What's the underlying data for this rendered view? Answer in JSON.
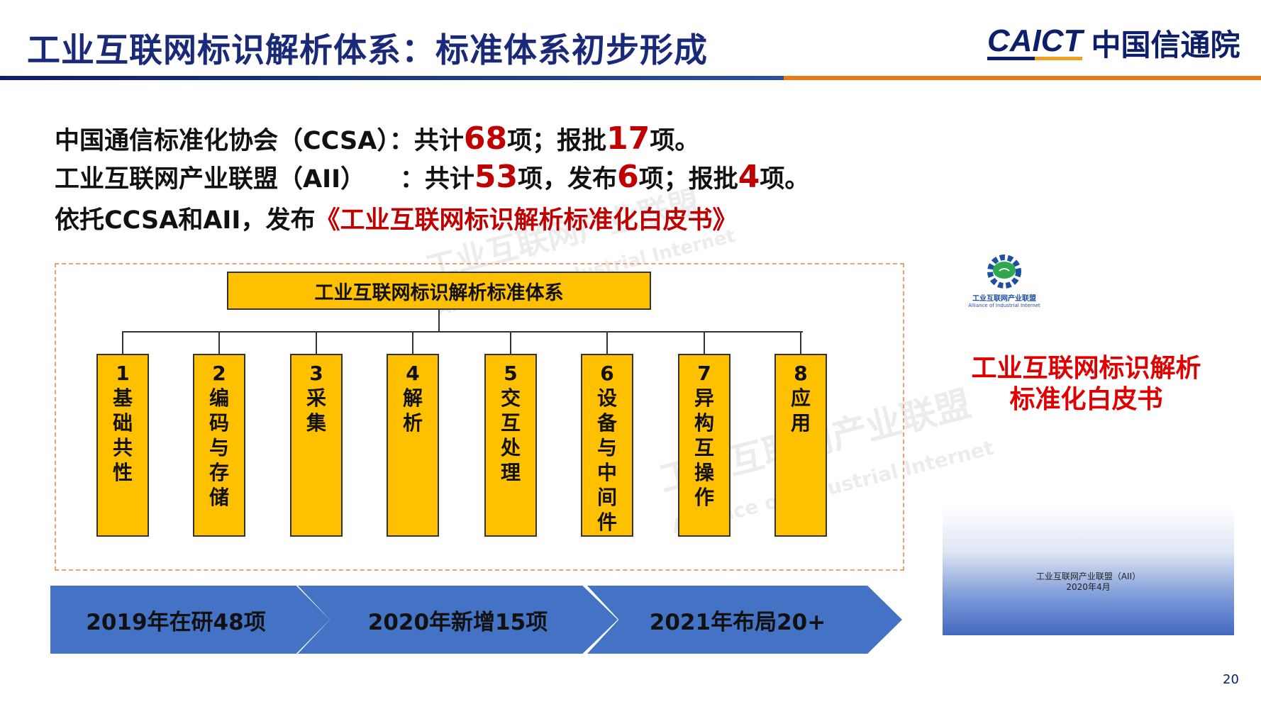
{
  "header": {
    "title": "工业互联网标识解析体系：标准体系初步形成",
    "logo_en": "CAICT",
    "logo_cn": "中国信通院"
  },
  "summary": {
    "ccsa": {
      "prefix": "中国通信标准化协会（CCSA）：共计",
      "total": "68",
      "mid": "项；报批",
      "approved": "17",
      "suffix": "项。"
    },
    "aii": {
      "prefix": "工业互联网产业联盟（AII）    ：共计",
      "total": "53",
      "mid1": "项，发布",
      "published": "6",
      "mid2": "项；报批",
      "approved": "4",
      "suffix": "项。"
    },
    "whitepaper": {
      "prefix": "依托CCSA和AII，发布",
      "title": "《工业互联网标识解析标准化白皮书》"
    }
  },
  "standards": {
    "root": "工业互联网标识解析标准体系",
    "categories": [
      {
        "num": "1",
        "label": "基础共性"
      },
      {
        "num": "2",
        "label": "编码与存储"
      },
      {
        "num": "3",
        "label": "采集"
      },
      {
        "num": "4",
        "label": "解析"
      },
      {
        "num": "5",
        "label": "交互处理"
      },
      {
        "num": "6",
        "label": "设备与中间件"
      },
      {
        "num": "7",
        "label": "异构互操作"
      },
      {
        "num": "8",
        "label": "应用"
      }
    ]
  },
  "timeline": [
    "2019年在研48项",
    "2020年新增15项",
    "2021年布局20+"
  ],
  "cover": {
    "org_cn": "工业互联网产业联盟",
    "org_en": "Alliance of Industrial Internet",
    "title_line1": "工业互联网标识解析",
    "title_line2": "标准化白皮书",
    "publisher": "工业互联网产业联盟（AII）",
    "date": "2020年4月"
  },
  "watermark": {
    "cn": "工业互联网产业联盟",
    "en": "Alliance of Industrial Internet"
  },
  "page_number": "20",
  "colors": {
    "navy": "#1a2a78",
    "orange": "#ec7a12",
    "yellow": "#ffc000",
    "arrow_blue": "#4472c4",
    "red": "#c00000"
  }
}
